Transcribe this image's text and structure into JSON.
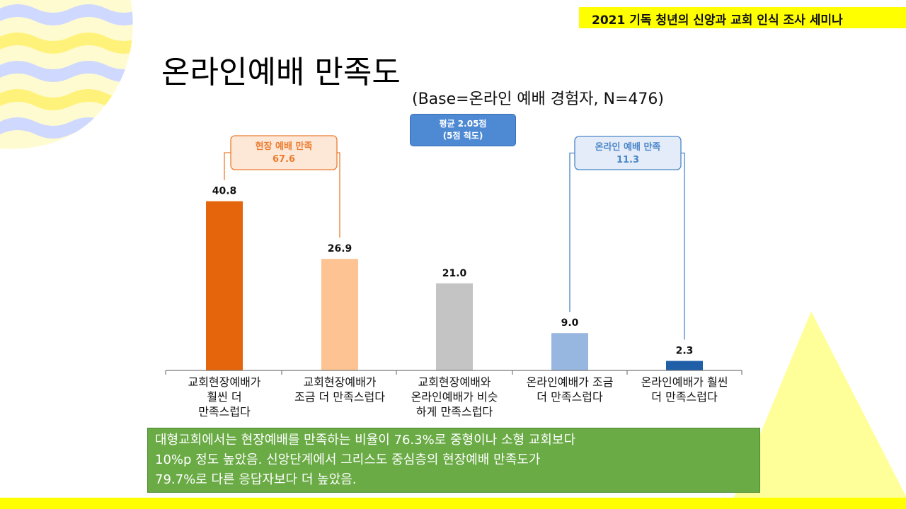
{
  "header": {
    "banner_title": "2021 기독 청년의 신앙과 교회 인식 조사 세미나"
  },
  "page": {
    "title": "온라인예배 만족도",
    "subtitle": "(Base=온라인 예배 경험자, N=476)"
  },
  "average_box": {
    "line1": "평균 2.05점",
    "line2": "(5점 척도)"
  },
  "groups": [
    {
      "label": "현장 예배 만족",
      "value": "67.6",
      "color": "#ec7c30",
      "fill": "#fde8d8"
    },
    {
      "label": "온라인 예배 만족",
      "value": "11.3",
      "color": "#4a86c8",
      "fill": "#e3ecf8"
    }
  ],
  "chart_data": {
    "type": "bar",
    "title": "온라인예배 만족도",
    "categories": [
      [
        "교회현장예배가",
        "훨씬 더",
        "만족스럽다"
      ],
      [
        "교회현장예배가",
        "조금 더 만족스럽다"
      ],
      [
        "교회현장예배와",
        "온라인예배가 비슷",
        "하게 만족스럽다"
      ],
      [
        "온라인예배가 조금",
        "더 만족스럽다"
      ],
      [
        "온라인예배가 훨씬",
        "더 만족스럽다"
      ]
    ],
    "values": [
      40.8,
      26.9,
      21.0,
      9.0,
      2.3
    ],
    "value_labels": [
      "40.8",
      "26.9",
      "21.0",
      "9.0",
      "2.3"
    ],
    "bar_colors": [
      "#e5650c",
      "#fdc393",
      "#c4c4c4",
      "#98b7e0",
      "#1f5fa8"
    ],
    "ylim": [
      0,
      45
    ],
    "xlabel": "",
    "ylabel": ""
  },
  "note": {
    "lines": [
      "대형교회에서는 현장예배를 만족하는 비율이 76.3%로 중형이나 소형 교회보다",
      "10%p 정도 높았음. 신앙단계에서 그리스도 중심층의 현장예배 만족도가",
      "79.7%로 다른 응답자보다 더 높았음."
    ]
  },
  "colors": {
    "accent_yellow": "#ffff00",
    "note_green": "#6aab45"
  }
}
